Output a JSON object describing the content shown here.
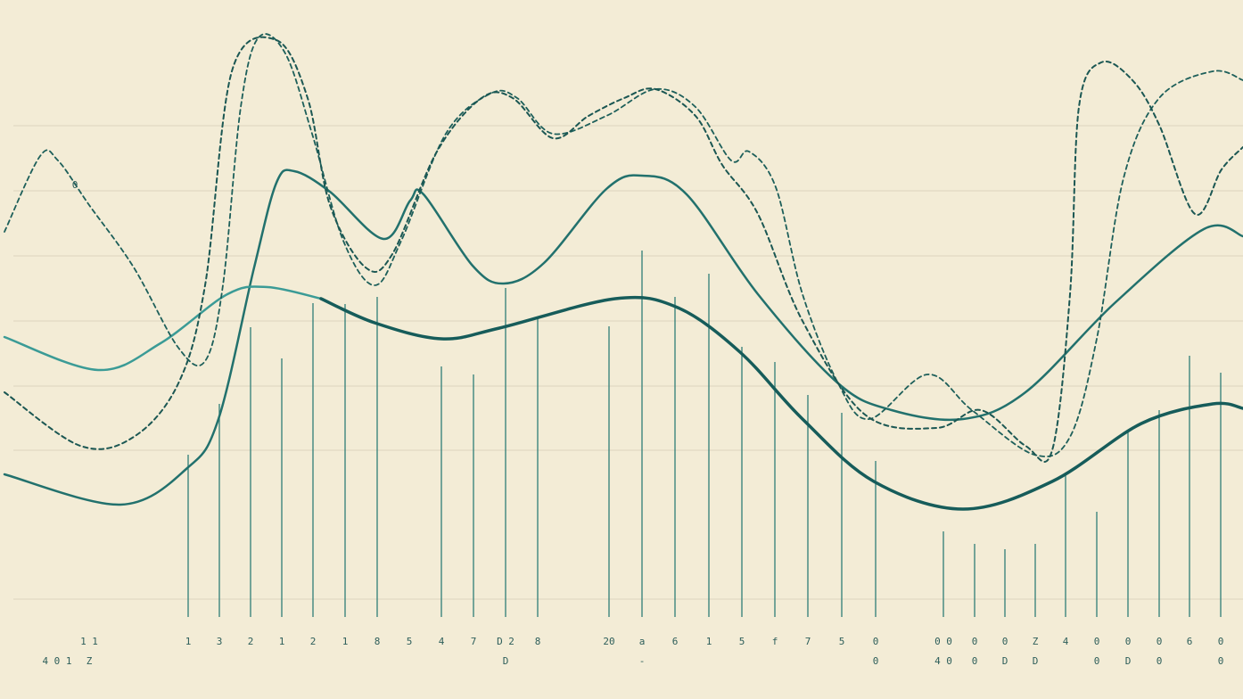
{
  "chart_data": {
    "type": "line",
    "xlim": [
      0,
      1394
    ],
    "ylim": [
      0,
      672
    ],
    "series": [
      {
        "kind": "stem",
        "color": "#2f7d77",
        "x": [
          211,
          246,
          281,
          316,
          351,
          387,
          423,
          495,
          531,
          567,
          603,
          683,
          720,
          757,
          795,
          832,
          869,
          906,
          944,
          982,
          1058,
          1093,
          1127,
          1161,
          1195,
          1230,
          1265,
          1300,
          1334,
          1369
        ],
        "values": [
          162,
          219,
          305,
          270,
          332,
          331,
          339,
          261,
          252,
          349,
          315,
          306,
          391,
          339,
          365,
          283,
          266,
          229,
          209,
          155,
          76,
          62,
          56,
          62,
          140,
          98,
          189,
          212,
          273,
          254
        ],
        "labels": [
          "1",
          "3",
          "2",
          "1",
          "2",
          "1",
          "8",
          "4",
          "7",
          "D 2",
          "8",
          "20",
          "a",
          "6",
          "1",
          "5",
          "f",
          "7",
          "5",
          "0",
          "0 0",
          "0",
          "0",
          "Z",
          "4",
          "0",
          "0",
          "0",
          "6",
          "0"
        ],
        "sublabels": [
          null,
          null,
          null,
          null,
          null,
          null,
          null,
          null,
          null,
          "D",
          null,
          null,
          "-",
          null,
          null,
          null,
          null,
          null,
          null,
          "0",
          "4 0",
          "0",
          "D",
          "D",
          null,
          "0",
          "D",
          "0",
          null,
          "0"
        ]
      },
      {
        "kind": "line",
        "style": "solid",
        "width": 2.5,
        "color": "#22716d",
        "x": [
          5,
          135,
          210,
          245,
          285,
          310,
          330,
          370,
          430,
          460,
          475,
          530,
          565,
          610,
          680,
          720,
          770,
          850,
          940,
          1000,
          1080,
          1150,
          1250,
          1350,
          1394
        ],
        "values": [
          140,
          106,
          147,
          202,
          372,
          467,
          480,
          457,
          404,
          447,
          454,
          374,
          354,
          377,
          460,
          475,
          454,
          342,
          242,
          212,
          202,
          232,
          332,
          415,
          407
        ]
      },
      {
        "kind": "line",
        "style": "solid",
        "width": 2.5,
        "color": "#3b9b96",
        "x": [
          5,
          110,
          180,
          255,
          300,
          360
        ],
        "values": [
          294,
          257,
          287,
          342,
          350,
          337
        ]
      },
      {
        "kind": "line",
        "style": "solid",
        "width": 3.5,
        "color": "#165c5a",
        "x": [
          360,
          420,
          495,
          560,
          690,
          760,
          830,
          900,
          980,
          1080,
          1180,
          1280,
          1360,
          1394
        ],
        "values": [
          337,
          310,
          292,
          304,
          337,
          327,
          277,
          202,
          132,
          101,
          132,
          197,
          219,
          214
        ]
      },
      {
        "kind": "line",
        "style": "dashed",
        "width": 1.8,
        "color": "#1d5f5a",
        "x": [
          5,
          45,
          65,
          100,
          150,
          200,
          230,
          250,
          270,
          290,
          320,
          350,
          385,
          420,
          450,
          500,
          550,
          580,
          620,
          680,
          735,
          780,
          820,
          840,
          870,
          900,
          940,
          975,
          1040,
          1090,
          1160,
          1200,
          1230,
          1260,
          1300,
          1360,
          1394
        ],
        "values": [
          412,
          497,
          492,
          442,
          372,
          282,
          267,
          352,
          552,
          630,
          612,
          522,
          402,
          352,
          402,
          522,
          567,
          562,
          522,
          542,
          572,
          552,
          492,
          502,
          462,
          342,
          242,
          202,
          252,
          212,
          162,
          182,
          292,
          472,
          562,
          592,
          582
        ]
      },
      {
        "kind": "line",
        "style": "dashed",
        "width": 2,
        "color": "#1b5753",
        "x": [
          5,
          90,
          150,
          200,
          230,
          260,
          310,
          345,
          370,
          410,
          440,
          490,
          540,
          575,
          620,
          660,
          700,
          735,
          780,
          810,
          850,
          900,
          970,
          1050,
          1100,
          1150,
          1180,
          1200,
          1210,
          1235,
          1270,
          1300,
          1340,
          1370,
          1394
        ],
        "values": [
          232,
          172,
          182,
          242,
          352,
          592,
          627,
          562,
          442,
          372,
          387,
          502,
          562,
          562,
          517,
          542,
          562,
          572,
          542,
          487,
          432,
          312,
          207,
          192,
          212,
          172,
          167,
          342,
          552,
          602,
          582,
          532,
          432,
          482,
          507
        ]
      }
    ],
    "extra_labels": [
      "4 0 1",
      "1 1",
      "Z",
      "5",
      "0"
    ]
  }
}
